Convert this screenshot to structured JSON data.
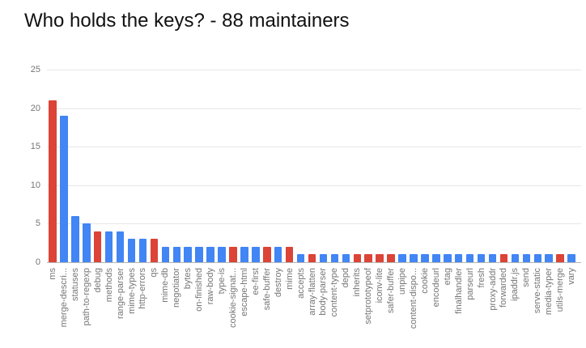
{
  "page": {
    "background": "#ffffff"
  },
  "chart_data": {
    "type": "bar",
    "title": "Who holds the keys? - 88 maintainers",
    "xlabel": "",
    "ylabel": "",
    "ylim": [
      0,
      25
    ],
    "yticks": [
      0,
      5,
      10,
      15,
      20,
      25
    ],
    "grid": true,
    "legend": "none",
    "bar_colors": {
      "blue": "#4285F4",
      "red": "#DB4437"
    },
    "points": [
      {
        "label": "ms",
        "value": 21,
        "color": "red"
      },
      {
        "label": "merge-descri...",
        "value": 19,
        "color": "blue"
      },
      {
        "label": "statuses",
        "value": 6,
        "color": "blue"
      },
      {
        "label": "path-to-regexp",
        "value": 5,
        "color": "blue"
      },
      {
        "label": "debug",
        "value": 4,
        "color": "red"
      },
      {
        "label": "methods",
        "value": 4,
        "color": "blue"
      },
      {
        "label": "range-parser",
        "value": 4,
        "color": "blue"
      },
      {
        "label": "mime-types",
        "value": 3,
        "color": "blue"
      },
      {
        "label": "http-errors",
        "value": 3,
        "color": "blue"
      },
      {
        "label": "qs",
        "value": 3,
        "color": "red"
      },
      {
        "label": "mime-db",
        "value": 2,
        "color": "blue"
      },
      {
        "label": "negotiator",
        "value": 2,
        "color": "blue"
      },
      {
        "label": "bytes",
        "value": 2,
        "color": "blue"
      },
      {
        "label": "on-finished",
        "value": 2,
        "color": "blue"
      },
      {
        "label": "raw-body",
        "value": 2,
        "color": "blue"
      },
      {
        "label": "type-is",
        "value": 2,
        "color": "blue"
      },
      {
        "label": "cookie-signat...",
        "value": 2,
        "color": "red"
      },
      {
        "label": "escape-html",
        "value": 2,
        "color": "blue"
      },
      {
        "label": "ee-first",
        "value": 2,
        "color": "blue"
      },
      {
        "label": "safe-buffer",
        "value": 2,
        "color": "red"
      },
      {
        "label": "destroy",
        "value": 2,
        "color": "blue"
      },
      {
        "label": "mime",
        "value": 2,
        "color": "red"
      },
      {
        "label": "accepts",
        "value": 1,
        "color": "blue"
      },
      {
        "label": "array-flatten",
        "value": 1,
        "color": "red"
      },
      {
        "label": "body-parser",
        "value": 1,
        "color": "blue"
      },
      {
        "label": "content-type",
        "value": 1,
        "color": "blue"
      },
      {
        "label": "depd",
        "value": 1,
        "color": "blue"
      },
      {
        "label": "inherits",
        "value": 1,
        "color": "red"
      },
      {
        "label": "setprototypeof",
        "value": 1,
        "color": "red"
      },
      {
        "label": "iconv-lite",
        "value": 1,
        "color": "red"
      },
      {
        "label": "safer-buffer",
        "value": 1,
        "color": "red"
      },
      {
        "label": "unpipe",
        "value": 1,
        "color": "blue"
      },
      {
        "label": "content-dispo...",
        "value": 1,
        "color": "blue"
      },
      {
        "label": "cookie",
        "value": 1,
        "color": "blue"
      },
      {
        "label": "encodeurl",
        "value": 1,
        "color": "blue"
      },
      {
        "label": "etag",
        "value": 1,
        "color": "blue"
      },
      {
        "label": "finalhandler",
        "value": 1,
        "color": "blue"
      },
      {
        "label": "parseurl",
        "value": 1,
        "color": "blue"
      },
      {
        "label": "fresh",
        "value": 1,
        "color": "blue"
      },
      {
        "label": "proxy-addr",
        "value": 1,
        "color": "blue"
      },
      {
        "label": "forwarded",
        "value": 1,
        "color": "red"
      },
      {
        "label": "ipaddr.js",
        "value": 1,
        "color": "blue"
      },
      {
        "label": "send",
        "value": 1,
        "color": "blue"
      },
      {
        "label": "serve-static",
        "value": 1,
        "color": "blue"
      },
      {
        "label": "media-typer",
        "value": 1,
        "color": "blue"
      },
      {
        "label": "utils-merge",
        "value": 1,
        "color": "red"
      },
      {
        "label": "vary",
        "value": 1,
        "color": "blue"
      }
    ]
  }
}
